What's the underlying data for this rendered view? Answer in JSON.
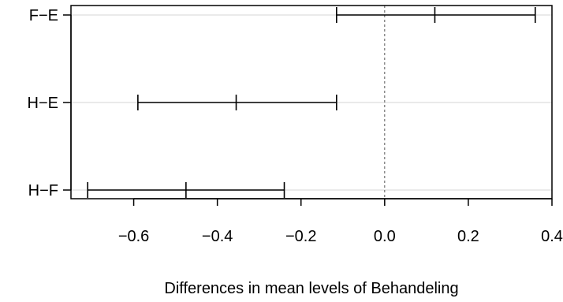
{
  "chart_data": {
    "type": "errorbar",
    "title": "",
    "xlabel": "Differences in mean levels of Behandeling",
    "ylabel": "",
    "xlim": [
      -0.75,
      0.4
    ],
    "xticks": [
      -0.6,
      -0.4,
      -0.2,
      0.0,
      0.2,
      0.4
    ],
    "xtick_labels": [
      "−0.6",
      "−0.4",
      "−0.2",
      "0.0",
      "0.2",
      "0.4"
    ],
    "reference_line": 0,
    "grid": "horizontal",
    "comparisons": [
      {
        "label": "F−E",
        "diff": 0.12,
        "lwr": -0.115,
        "upr": 0.36
      },
      {
        "label": "H−E",
        "diff": -0.355,
        "lwr": -0.59,
        "upr": -0.115
      },
      {
        "label": "H−F",
        "diff": -0.475,
        "lwr": -0.71,
        "upr": -0.24
      }
    ]
  }
}
